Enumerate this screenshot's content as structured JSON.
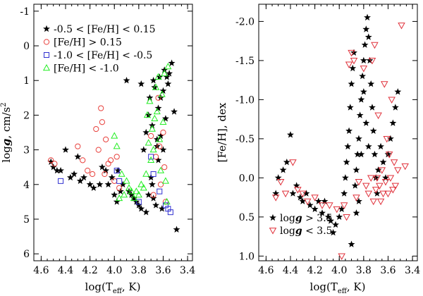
{
  "colors": {
    "star": "#000000",
    "circle": "#e8403c",
    "square": "#3030d0",
    "triangle": "#22ee22",
    "down_triangle": "#e0303a"
  },
  "chart_data": [
    {
      "type": "scatter",
      "xlabel": "log(T",
      "xlabel_sub": "eff",
      "xlabel_tail": ", K)",
      "ylabel": "log",
      "ylabel_g": "g",
      "ylabel_tail": ", cm/s",
      "ylabel_sup": "2",
      "xlim": [
        4.66,
        3.36
      ],
      "ylim": [
        -1.2,
        6.2
      ],
      "xticks": [
        "4.6",
        "4.4",
        "4.2",
        "4.0",
        "3.8",
        "3.6",
        "3.4"
      ],
      "xtick_values": [
        4.6,
        4.4,
        4.2,
        4.0,
        3.8,
        3.6,
        3.4
      ],
      "yticks": [
        "-1",
        "0",
        "1",
        "2",
        "3",
        "4",
        "5",
        "6"
      ],
      "ytick_values": [
        -1,
        0,
        1,
        2,
        3,
        4,
        5,
        6
      ],
      "legend": [
        {
          "marker": "star",
          "text": "-0.5 < [Fe/H] < 0.15"
        },
        {
          "marker": "circle",
          "text": "[Fe/H] > 0.15"
        },
        {
          "marker": "square",
          "text": "-1.0 < [Fe/H] < -0.5"
        },
        {
          "marker": "triangle",
          "text": "[Fe/H] < -1.0"
        }
      ],
      "series": [
        {
          "name": "-0.5 < [Fe/H] < 0.15",
          "marker": "star",
          "points": [
            [
              4.52,
              3.35
            ],
            [
              4.5,
              3.5
            ],
            [
              4.47,
              3.6
            ],
            [
              4.44,
              3.6
            ],
            [
              4.4,
              3.0
            ],
            [
              4.36,
              3.8
            ],
            [
              4.33,
              3.7
            ],
            [
              4.3,
              3.2
            ],
            [
              4.28,
              3.9
            ],
            [
              4.25,
              3.8
            ],
            [
              4.2,
              4.0
            ],
            [
              4.17,
              4.1
            ],
            [
              4.12,
              4.0
            ],
            [
              4.1,
              3.5
            ],
            [
              4.07,
              3.6
            ],
            [
              4.05,
              4.0
            ],
            [
              4.02,
              3.8
            ],
            [
              4.0,
              4.3
            ],
            [
              3.98,
              4.5
            ],
            [
              3.97,
              3.6
            ],
            [
              3.95,
              4.2
            ],
            [
              3.93,
              4.0
            ],
            [
              3.9,
              1.0
            ],
            [
              3.88,
              4.2
            ],
            [
              3.86,
              4.3
            ],
            [
              3.84,
              4.4
            ],
            [
              3.82,
              4.5
            ],
            [
              3.8,
              4.6
            ],
            [
              3.78,
              4.7
            ],
            [
              3.76,
              3.0
            ],
            [
              3.74,
              2.5
            ],
            [
              3.72,
              2.0
            ],
            [
              3.71,
              1.5
            ],
            [
              3.7,
              3.8
            ],
            [
              3.69,
              2.3
            ],
            [
              3.68,
              1.0
            ],
            [
              3.67,
              1.2
            ],
            [
              3.66,
              4.6
            ],
            [
              3.65,
              2.7
            ],
            [
              3.64,
              1.8
            ],
            [
              3.63,
              0.9
            ],
            [
              3.62,
              1.5
            ],
            [
              3.61,
              4.7
            ],
            [
              3.6,
              1.3
            ],
            [
              3.59,
              0.7
            ],
            [
              3.58,
              2.1
            ],
            [
              3.57,
              0.9
            ],
            [
              3.56,
              1.1
            ],
            [
              3.55,
              0.8
            ],
            [
              3.53,
              0.5
            ],
            [
              3.51,
              1.9
            ],
            [
              3.49,
              5.3
            ],
            [
              3.78,
              1.1
            ],
            [
              3.74,
              4.8
            ],
            [
              3.65,
              2.9
            ],
            [
              3.72,
              4.3
            ],
            [
              3.69,
              4.0
            ],
            [
              3.64,
              3.3
            ],
            [
              3.62,
              2.6
            ],
            [
              3.6,
              3.0
            ],
            [
              3.68,
              4.4
            ]
          ]
        },
        {
          "name": "[Fe/H] > 0.15",
          "marker": "circle",
          "points": [
            [
              4.52,
              3.3
            ],
            [
              4.49,
              3.4
            ],
            [
              4.3,
              2.9
            ],
            [
              4.26,
              3.3
            ],
            [
              4.22,
              3.6
            ],
            [
              4.18,
              3.7
            ],
            [
              4.15,
              2.4
            ],
            [
              4.13,
              3.0
            ],
            [
              4.11,
              1.8
            ],
            [
              4.1,
              2.2
            ],
            [
              4.08,
              3.7
            ],
            [
              4.07,
              2.7
            ],
            [
              4.05,
              3.4
            ],
            [
              4.03,
              3.3
            ],
            [
              4.0,
              3.9
            ],
            [
              3.98,
              3.2
            ],
            [
              3.96,
              4.1
            ],
            [
              3.7,
              2.6
            ],
            [
              3.68,
              4.3
            ],
            [
              3.66,
              3.2
            ],
            [
              3.64,
              1.5
            ],
            [
              3.63,
              2.9
            ],
            [
              3.62,
              4.0
            ],
            [
              3.6,
              2.5
            ],
            [
              3.59,
              3.5
            ],
            [
              3.58,
              4.5
            ]
          ]
        },
        {
          "name": "-1.0 < [Fe/H] < -0.5",
          "marker": "square",
          "points": [
            [
              4.44,
              3.9
            ],
            [
              3.98,
              3.6
            ],
            [
              3.96,
              3.9
            ],
            [
              3.8,
              4.5
            ],
            [
              3.7,
              3.2
            ],
            [
              3.68,
              3.7
            ],
            [
              3.63,
              4.2
            ],
            [
              3.58,
              4.6
            ],
            [
              3.56,
              4.7
            ],
            [
              3.54,
              4.8
            ]
          ]
        },
        {
          "name": "[Fe/H] < -1.0",
          "marker": "triangle",
          "points": [
            [
              4.0,
              2.6
            ],
            [
              3.98,
              2.9
            ],
            [
              3.96,
              4.4
            ],
            [
              3.94,
              3.7
            ],
            [
              3.92,
              4.3
            ],
            [
              3.9,
              3.9
            ],
            [
              3.88,
              4.1
            ],
            [
              3.86,
              4.2
            ],
            [
              3.84,
              4.4
            ],
            [
              3.82,
              4.2
            ],
            [
              3.8,
              4.3
            ],
            [
              3.78,
              4.0
            ],
            [
              3.76,
              4.1
            ],
            [
              3.74,
              3.7
            ],
            [
              3.73,
              2.0
            ],
            [
              3.72,
              2.8
            ],
            [
              3.71,
              1.6
            ],
            [
              3.7,
              3.3
            ],
            [
              3.69,
              2.4
            ],
            [
              3.68,
              3.0
            ],
            [
              3.67,
              2.1
            ],
            [
              3.66,
              1.2
            ],
            [
              3.65,
              1.9
            ],
            [
              3.64,
              0.9
            ],
            [
              3.63,
              2.7
            ],
            [
              3.62,
              3.6
            ],
            [
              3.61,
              1.4
            ],
            [
              3.6,
              2.2
            ],
            [
              3.59,
              0.8
            ],
            [
              3.58,
              3.9
            ],
            [
              3.57,
              4.5
            ],
            [
              3.56,
              0.6
            ]
          ]
        }
      ]
    },
    {
      "type": "scatter",
      "xlabel": "log(T",
      "xlabel_sub": "eff",
      "xlabel_tail": ", K)",
      "ylabel": "[Fe/H], dex",
      "xlim": [
        4.66,
        3.36
      ],
      "ylim": [
        -2.22,
        1.06
      ],
      "xticks": [
        "4.6",
        "4.4",
        "4.2",
        "4.0",
        "3.8",
        "3.6",
        "3.4"
      ],
      "xtick_values": [
        4.6,
        4.4,
        4.2,
        4.0,
        3.8,
        3.6,
        3.4
      ],
      "yticks": [
        "1.0",
        "0.5",
        "0.0",
        "-0.5",
        "-1.0",
        "-1.5",
        "-2.0"
      ],
      "ytick_values": [
        1.0,
        0.5,
        0.0,
        -0.5,
        -1.0,
        -1.5,
        -2.0
      ],
      "legend": [
        {
          "marker": "star",
          "text_pre": "log",
          "text_g": "g",
          "text_post": " > 3.5"
        },
        {
          "marker": "down_triangle",
          "text_pre": "log",
          "text_g": "g",
          "text_post": " < 3.5"
        }
      ],
      "series": [
        {
          "name": "log g > 3.5",
          "marker": "star",
          "points": [
            [
              4.52,
              0.2
            ],
            [
              4.5,
              0.0
            ],
            [
              4.46,
              -0.1
            ],
            [
              4.43,
              -0.2
            ],
            [
              4.4,
              -0.55
            ],
            [
              4.38,
              0.2
            ],
            [
              4.35,
              0.1
            ],
            [
              4.32,
              0.25
            ],
            [
              4.3,
              0.3
            ],
            [
              4.27,
              0.2
            ],
            [
              4.24,
              0.35
            ],
            [
              4.2,
              0.4
            ],
            [
              4.17,
              0.3
            ],
            [
              4.14,
              0.45
            ],
            [
              4.12,
              0.3
            ],
            [
              4.09,
              0.5
            ],
            [
              4.07,
              0.55
            ],
            [
              4.05,
              0.7
            ],
            [
              4.03,
              0.6
            ],
            [
              4.0,
              0.5
            ],
            [
              3.98,
              0.4
            ],
            [
              3.96,
              0.2
            ],
            [
              3.95,
              0.0
            ],
            [
              3.94,
              -0.2
            ],
            [
              3.93,
              -0.4
            ],
            [
              3.92,
              -0.6
            ],
            [
              3.91,
              -0.9
            ],
            [
              3.9,
              -1.2
            ],
            [
              3.89,
              -1.4
            ],
            [
              3.88,
              -1.6
            ],
            [
              3.87,
              0.1
            ],
            [
              3.86,
              -0.1
            ],
            [
              3.85,
              -0.3
            ],
            [
              3.84,
              -0.5
            ],
            [
              3.83,
              -0.8
            ],
            [
              3.82,
              -1.0
            ],
            [
              3.81,
              -1.3
            ],
            [
              3.8,
              -1.5
            ],
            [
              3.79,
              -1.7
            ],
            [
              3.78,
              -1.9
            ],
            [
              3.77,
              -2.05
            ],
            [
              3.76,
              -1.8
            ],
            [
              3.75,
              -1.5
            ],
            [
              3.74,
              -1.2
            ],
            [
              3.73,
              -0.9
            ],
            [
              3.72,
              -0.6
            ],
            [
              3.71,
              -0.3
            ],
            [
              3.7,
              0.0
            ],
            [
              3.69,
              0.2
            ],
            [
              3.68,
              -0.1
            ],
            [
              3.66,
              -0.4
            ],
            [
              3.64,
              -0.2
            ],
            [
              3.62,
              0.0
            ],
            [
              3.6,
              -0.3
            ],
            [
              3.58,
              -0.5
            ],
            [
              3.56,
              -0.7
            ],
            [
              3.54,
              -0.9
            ],
            [
              3.52,
              -1.1
            ],
            [
              3.9,
              0.85
            ],
            [
              3.86,
              0.45
            ],
            [
              3.8,
              -1.1
            ],
            [
              3.78,
              -0.7
            ],
            [
              3.76,
              -0.4
            ],
            [
              3.82,
              -0.3
            ],
            [
              3.84,
              0.3
            ]
          ]
        },
        {
          "name": "log g < 3.5",
          "marker": "down_triangle",
          "points": [
            [
              4.52,
              0.25
            ],
            [
              4.48,
              0.05
            ],
            [
              4.44,
              0.2
            ],
            [
              4.38,
              -0.2
            ],
            [
              4.34,
              0.15
            ],
            [
              4.3,
              0.2
            ],
            [
              4.26,
              0.3
            ],
            [
              4.2,
              0.25
            ],
            [
              4.14,
              0.35
            ],
            [
              4.08,
              0.35
            ],
            [
              4.02,
              0.4
            ],
            [
              3.98,
              1.0
            ],
            [
              3.96,
              0.35
            ],
            [
              3.94,
              0.5
            ],
            [
              3.92,
              -1.45
            ],
            [
              3.9,
              -1.6
            ],
            [
              3.88,
              -1.5
            ],
            [
              3.86,
              0.25
            ],
            [
              3.84,
              0.05
            ],
            [
              3.8,
              -1.4
            ],
            [
              3.78,
              0.1
            ],
            [
              3.76,
              0.2
            ],
            [
              3.74,
              0.0
            ],
            [
              3.73,
              -1.5
            ],
            [
              3.72,
              0.3
            ],
            [
              3.71,
              -1.7
            ],
            [
              3.7,
              0.15
            ],
            [
              3.69,
              0.0
            ],
            [
              3.68,
              -0.8
            ],
            [
              3.67,
              0.1
            ],
            [
              3.66,
              0.3
            ],
            [
              3.65,
              -0.1
            ],
            [
              3.64,
              0.2
            ],
            [
              3.63,
              -1.2
            ],
            [
              3.62,
              0.05
            ],
            [
              3.61,
              -0.5
            ],
            [
              3.6,
              0.2
            ],
            [
              3.59,
              -0.3
            ],
            [
              3.58,
              0.0
            ],
            [
              3.57,
              -1.0
            ],
            [
              3.56,
              0.15
            ],
            [
              3.55,
              -0.2
            ],
            [
              3.54,
              0.1
            ],
            [
              3.52,
              -0.1
            ],
            [
              3.49,
              -1.95
            ],
            [
              3.46,
              -0.15
            ]
          ]
        }
      ]
    }
  ]
}
